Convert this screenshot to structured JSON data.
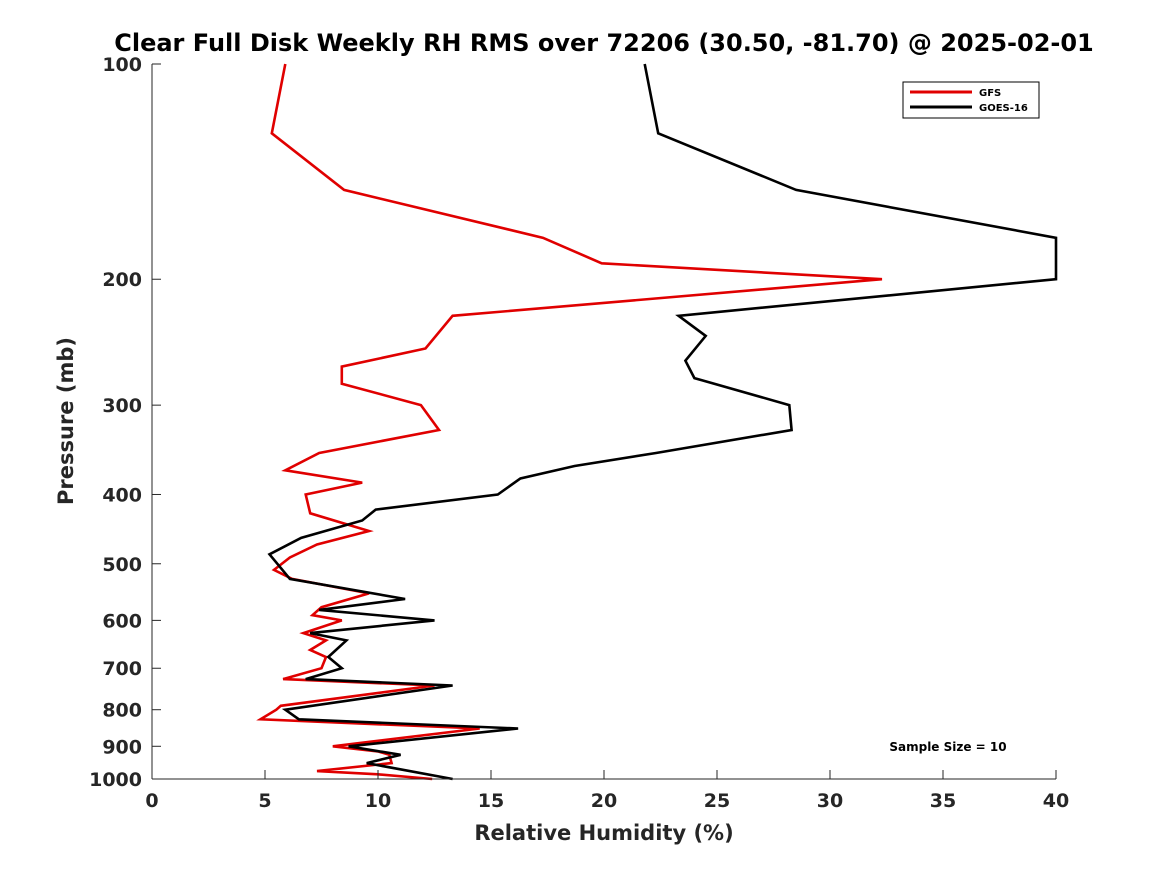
{
  "chart_data": {
    "type": "line",
    "title": "Clear Full Disk Weekly RH RMS over 72206 (30.50, -81.70) @ 2025-02-01",
    "xlabel": "Relative Humidity (%)",
    "ylabel": "Pressure (mb)",
    "xlim": [
      0,
      40
    ],
    "ylim": [
      100,
      1000
    ],
    "y_scale": "log",
    "y_reversed": true,
    "grid": false,
    "legend_position": "top-right",
    "x_ticks": [
      "0",
      "5",
      "10",
      "15",
      "20",
      "25",
      "30",
      "35",
      "40"
    ],
    "y_ticks": [
      "100",
      "200",
      "300",
      "400",
      "500",
      "600",
      "700",
      "800",
      "900",
      "1000"
    ],
    "annotation": "Sample Size = 10",
    "series": [
      {
        "name": "GFS",
        "color": "#e00000",
        "points": [
          [
            5.9,
            100
          ],
          [
            5.3,
            125
          ],
          [
            8.5,
            150
          ],
          [
            17.3,
            175
          ],
          [
            19.9,
            190
          ],
          [
            32.3,
            200
          ],
          [
            13.3,
            225
          ],
          [
            12.1,
            250
          ],
          [
            8.4,
            265
          ],
          [
            8.4,
            280
          ],
          [
            11.9,
            300
          ],
          [
            12.7,
            325
          ],
          [
            7.4,
            350
          ],
          [
            5.9,
            370
          ],
          [
            9.3,
            385
          ],
          [
            6.8,
            400
          ],
          [
            7.0,
            425
          ],
          [
            9.6,
            450
          ],
          [
            7.3,
            470
          ],
          [
            6.1,
            490
          ],
          [
            5.4,
            510
          ],
          [
            6.2,
            525
          ],
          [
            9.6,
            550
          ],
          [
            7.5,
            575
          ],
          [
            7.1,
            590
          ],
          [
            8.4,
            600
          ],
          [
            6.7,
            625
          ],
          [
            7.7,
            640
          ],
          [
            7.0,
            660
          ],
          [
            7.7,
            675
          ],
          [
            7.5,
            700
          ],
          [
            5.8,
            725
          ],
          [
            12.5,
            740
          ],
          [
            5.7,
            790
          ],
          [
            5.5,
            800
          ],
          [
            4.8,
            825
          ],
          [
            14.5,
            850
          ],
          [
            8.0,
            900
          ],
          [
            10.0,
            915
          ],
          [
            10.5,
            925
          ],
          [
            10.6,
            950
          ],
          [
            7.3,
            975
          ],
          [
            10.0,
            985
          ],
          [
            12.4,
            1000
          ]
        ]
      },
      {
        "name": "GOES-16",
        "color": "#000000",
        "points": [
          [
            21.8,
            100
          ],
          [
            22.4,
            125
          ],
          [
            28.5,
            150
          ],
          [
            40.0,
            175
          ],
          [
            40.0,
            200
          ],
          [
            23.3,
            225
          ],
          [
            24.5,
            240
          ],
          [
            23.6,
            260
          ],
          [
            24.0,
            275
          ],
          [
            28.2,
            300
          ],
          [
            28.3,
            325
          ],
          [
            22.3,
            350
          ],
          [
            18.7,
            365
          ],
          [
            16.3,
            380
          ],
          [
            15.3,
            400
          ],
          [
            9.9,
            420
          ],
          [
            9.3,
            435
          ],
          [
            6.6,
            460
          ],
          [
            5.2,
            485
          ],
          [
            6.1,
            525
          ],
          [
            11.2,
            560
          ],
          [
            7.4,
            580
          ],
          [
            12.5,
            600
          ],
          [
            7.0,
            625
          ],
          [
            8.6,
            640
          ],
          [
            7.8,
            675
          ],
          [
            8.4,
            700
          ],
          [
            6.8,
            725
          ],
          [
            13.3,
            740
          ],
          [
            5.9,
            800
          ],
          [
            6.5,
            825
          ],
          [
            16.2,
            850
          ],
          [
            8.7,
            900
          ],
          [
            11.0,
            925
          ],
          [
            9.5,
            950
          ],
          [
            13.3,
            1000
          ]
        ]
      }
    ]
  }
}
